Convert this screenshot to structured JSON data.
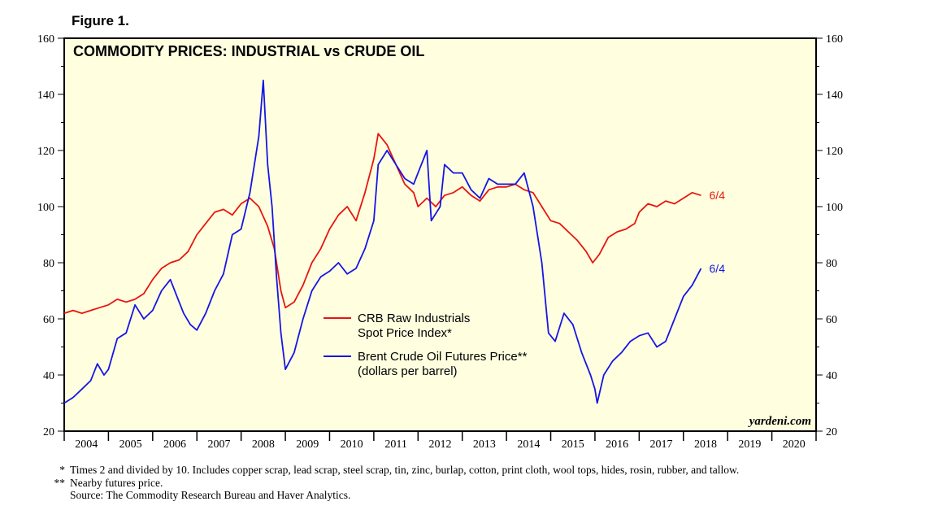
{
  "figure_label": "Figure 1.",
  "footnotes": [
    {
      "mark": "*",
      "text": "Times 2 and divided by 10. Includes copper scrap, lead scrap, steel scrap, tin, zinc, burlap, cotton, print cloth, wool tops, hides, rosin, rubber, and tallow."
    },
    {
      "mark": "**",
      "text": "Nearby futures price."
    },
    {
      "mark": "",
      "text": "Source: The Commodity Research Bureau and Haver Analytics."
    }
  ],
  "credit": "yardeni.com",
  "colors": {
    "crb": "#e8150d",
    "brent": "#1515e6",
    "plot_bg": "#ffffe0"
  },
  "chart_data": {
    "type": "line",
    "title": "COMMODITY PRICES: INDUSTRIAL vs CRUDE OIL",
    "ylim": [
      20,
      160
    ],
    "y_ticks": [
      20,
      40,
      60,
      80,
      100,
      120,
      140,
      160
    ],
    "xlim": [
      2004,
      2021
    ],
    "x_tick_labels": [
      "2004",
      "2005",
      "2006",
      "2007",
      "2008",
      "2009",
      "2010",
      "2011",
      "2012",
      "2013",
      "2014",
      "2015",
      "2016",
      "2017",
      "2018",
      "2019",
      "2020"
    ],
    "legend": {
      "crb": [
        "CRB Raw Industrials",
        "Spot Price Index*"
      ],
      "brent": [
        "Brent Crude Oil Futures Price**",
        "(dollars per barrel)"
      ]
    },
    "series": [
      {
        "name": "CRB Raw Industrials Spot Price Index*",
        "key": "crb",
        "end_label": "6/4",
        "x": [
          2004.0,
          2004.2,
          2004.4,
          2004.6,
          2004.8,
          2005.0,
          2005.2,
          2005.4,
          2005.6,
          2005.8,
          2006.0,
          2006.2,
          2006.4,
          2006.6,
          2006.8,
          2007.0,
          2007.2,
          2007.4,
          2007.6,
          2007.8,
          2008.0,
          2008.2,
          2008.4,
          2008.6,
          2008.75,
          2008.9,
          2009.0,
          2009.2,
          2009.4,
          2009.6,
          2009.8,
          2010.0,
          2010.2,
          2010.4,
          2010.6,
          2010.8,
          2011.0,
          2011.1,
          2011.3,
          2011.5,
          2011.7,
          2011.9,
          2012.0,
          2012.2,
          2012.4,
          2012.6,
          2012.8,
          2013.0,
          2013.2,
          2013.4,
          2013.6,
          2013.8,
          2014.0,
          2014.2,
          2014.4,
          2014.6,
          2014.8,
          2015.0,
          2015.2,
          2015.4,
          2015.6,
          2015.8,
          2015.95,
          2016.1,
          2016.3,
          2016.5,
          2016.7,
          2016.9,
          2017.0,
          2017.2,
          2017.4,
          2017.6,
          2017.8,
          2018.0,
          2018.2,
          2018.4
        ],
        "values": [
          62,
          63,
          62,
          63,
          64,
          65,
          67,
          66,
          67,
          69,
          74,
          78,
          80,
          81,
          84,
          90,
          94,
          98,
          99,
          97,
          101,
          103,
          100,
          93,
          85,
          70,
          64,
          66,
          72,
          80,
          85,
          92,
          97,
          100,
          95,
          105,
          117,
          126,
          122,
          115,
          108,
          105,
          100,
          103,
          100,
          104,
          105,
          107,
          104,
          102,
          106,
          107,
          107,
          108,
          106,
          105,
          100,
          95,
          94,
          91,
          88,
          84,
          80,
          83,
          89,
          91,
          92,
          94,
          98,
          101,
          100,
          102,
          101,
          103,
          105,
          104
        ]
      },
      {
        "name": "Brent Crude Oil Futures Price**",
        "key": "brent",
        "end_label": "6/4",
        "x": [
          2004.0,
          2004.2,
          2004.4,
          2004.6,
          2004.75,
          2004.9,
          2005.0,
          2005.2,
          2005.4,
          2005.6,
          2005.8,
          2006.0,
          2006.2,
          2006.4,
          2006.55,
          2006.7,
          2006.85,
          2007.0,
          2007.2,
          2007.4,
          2007.6,
          2007.8,
          2008.0,
          2008.2,
          2008.4,
          2008.5,
          2008.6,
          2008.7,
          2008.8,
          2008.9,
          2009.0,
          2009.2,
          2009.4,
          2009.6,
          2009.8,
          2010.0,
          2010.2,
          2010.4,
          2010.6,
          2010.8,
          2011.0,
          2011.1,
          2011.3,
          2011.5,
          2011.7,
          2011.9,
          2012.0,
          2012.2,
          2012.3,
          2012.5,
          2012.6,
          2012.8,
          2013.0,
          2013.2,
          2013.4,
          2013.6,
          2013.8,
          2014.0,
          2014.2,
          2014.4,
          2014.6,
          2014.8,
          2014.95,
          2015.1,
          2015.3,
          2015.5,
          2015.7,
          2015.9,
          2016.0,
          2016.05,
          2016.2,
          2016.4,
          2016.6,
          2016.8,
          2017.0,
          2017.2,
          2017.4,
          2017.6,
          2017.8,
          2018.0,
          2018.2,
          2018.4
        ],
        "values": [
          30,
          32,
          35,
          38,
          44,
          40,
          42,
          53,
          55,
          65,
          60,
          63,
          70,
          74,
          68,
          62,
          58,
          56,
          62,
          70,
          76,
          90,
          92,
          105,
          125,
          145,
          115,
          100,
          75,
          55,
          42,
          48,
          60,
          70,
          75,
          77,
          80,
          76,
          78,
          85,
          95,
          115,
          120,
          115,
          110,
          108,
          112,
          120,
          95,
          100,
          115,
          112,
          112,
          106,
          103,
          110,
          108,
          108,
          108,
          112,
          100,
          80,
          55,
          52,
          62,
          58,
          48,
          40,
          35,
          30,
          40,
          45,
          48,
          52,
          54,
          55,
          50,
          52,
          60,
          68,
          72,
          78
        ]
      }
    ]
  }
}
